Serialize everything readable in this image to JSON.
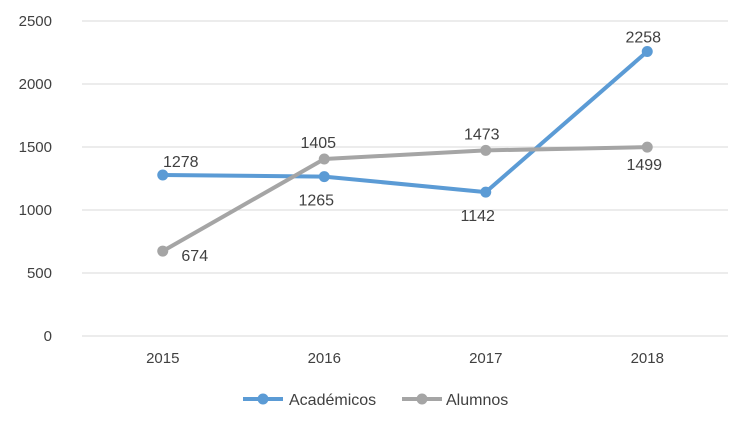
{
  "chart_data": {
    "type": "line",
    "title": "",
    "xlabel": "",
    "ylabel": "",
    "categories": [
      "2015",
      "2016",
      "2017",
      "2018"
    ],
    "ylim": [
      0,
      2500
    ],
    "yticks": [
      "0",
      "500",
      "1000",
      "1500",
      "2000",
      "2500"
    ],
    "grid": true,
    "legend_position": "bottom",
    "series": [
      {
        "name": "Académicos",
        "color": "#5B9BD5",
        "values": [
          1278,
          1265,
          1142,
          2258
        ],
        "labels": [
          "1278",
          "1265",
          "1142",
          "2258"
        ]
      },
      {
        "name": "Alumnos",
        "color": "#A5A5A5",
        "values": [
          674,
          1405,
          1473,
          1499
        ],
        "labels": [
          "674",
          "1405",
          "1473",
          "1499"
        ]
      }
    ]
  }
}
